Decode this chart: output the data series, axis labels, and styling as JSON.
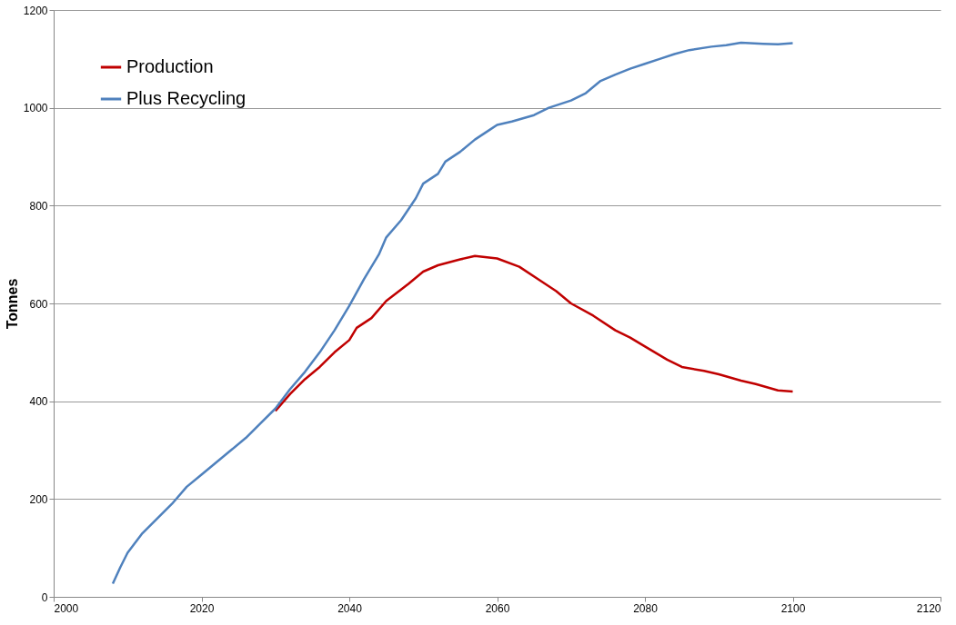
{
  "chart_data": {
    "type": "line",
    "ylabel": "Tonnes",
    "xlim": [
      2000,
      2120
    ],
    "xticks": [
      2000,
      2020,
      2040,
      2060,
      2080,
      2100,
      2120
    ],
    "ylim": [
      0,
      1200
    ],
    "yticks": [
      0,
      200,
      400,
      600,
      800,
      1000,
      1200
    ],
    "grid": "y",
    "legend": "top left",
    "marker": "none",
    "line_style": "solid",
    "series": [
      {
        "name": "Production",
        "color": "#c00000",
        "x": [
          2030,
          2032,
          2034,
          2036,
          2038,
          2040,
          2041,
          2043,
          2045,
          2048,
          2050,
          2052,
          2055,
          2057,
          2060,
          2063,
          2066,
          2068,
          2070,
          2073,
          2076,
          2078,
          2080,
          2083,
          2085,
          2088,
          2090,
          2093,
          2095,
          2098,
          2100
        ],
        "values": [
          380,
          415,
          445,
          470,
          500,
          525,
          550,
          570,
          605,
          640,
          665,
          678,
          690,
          697,
          692,
          675,
          645,
          625,
          600,
          575,
          545,
          530,
          512,
          485,
          470,
          462,
          455,
          442,
          435,
          422,
          420
        ]
      },
      {
        "name": "Plus Recycling",
        "color": "#4f81bd",
        "x": [
          2008,
          2009,
          2010,
          2012,
          2014,
          2016,
          2018,
          2020,
          2022,
          2024,
          2026,
          2028,
          2030,
          2032,
          2034,
          2036,
          2038,
          2040,
          2042,
          2044,
          2045,
          2047,
          2049,
          2050,
          2052,
          2053,
          2055,
          2057,
          2059,
          2060,
          2062,
          2065,
          2067,
          2070,
          2072,
          2074,
          2076,
          2078,
          2080,
          2082,
          2084,
          2086,
          2089,
          2091,
          2093,
          2096,
          2098,
          2100
        ],
        "values": [
          27,
          60,
          90,
          130,
          160,
          190,
          225,
          250,
          275,
          300,
          325,
          355,
          385,
          425,
          460,
          500,
          545,
          595,
          650,
          700,
          735,
          770,
          815,
          845,
          865,
          890,
          910,
          935,
          955,
          965,
          972,
          985,
          1000,
          1015,
          1030,
          1055,
          1068,
          1080,
          1090,
          1100,
          1110,
          1118,
          1125,
          1128,
          1133,
          1131,
          1130,
          1132
        ]
      }
    ]
  }
}
